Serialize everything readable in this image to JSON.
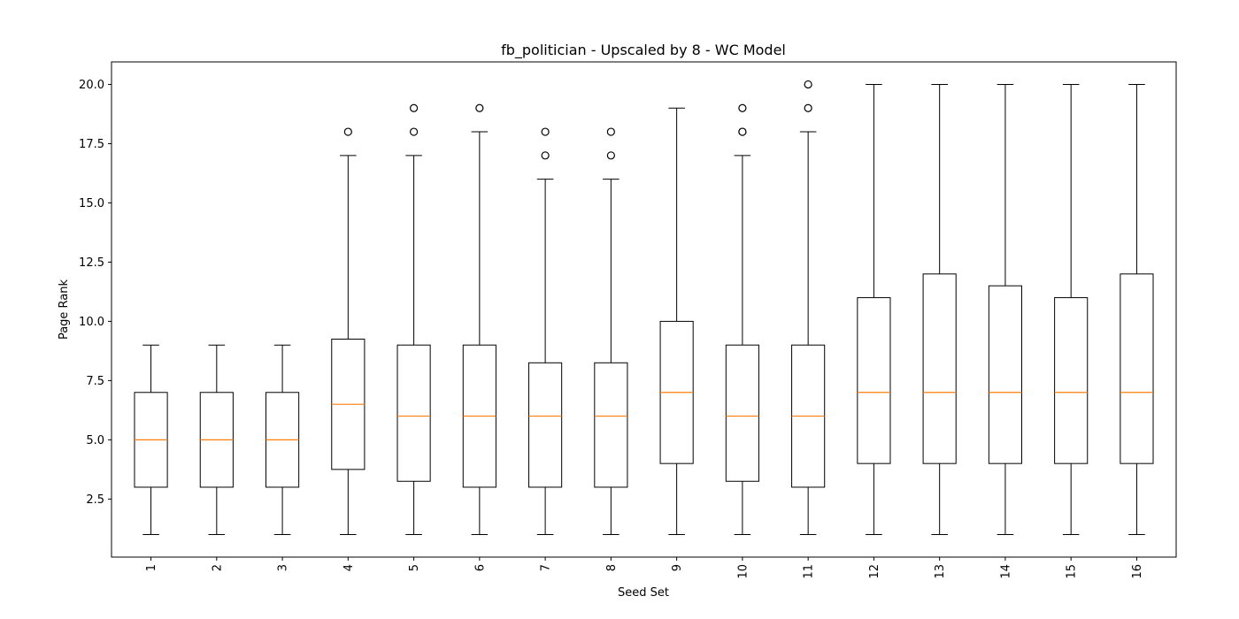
{
  "chart_data": {
    "type": "box",
    "title": "fb_politician - Upscaled by 8 - WC Model",
    "xlabel": "Seed Set",
    "ylabel": "Page Rank",
    "ylim": [
      0.05,
      20.95
    ],
    "yticks": [
      2.5,
      5.0,
      7.5,
      10.0,
      12.5,
      15.0,
      17.5,
      20.0
    ],
    "ytick_labels": [
      "2.5",
      "5.0",
      "7.5",
      "10.0",
      "12.5",
      "15.0",
      "17.5",
      "20.0"
    ],
    "categories": [
      "1",
      "2",
      "3",
      "4",
      "5",
      "6",
      "7",
      "8",
      "9",
      "10",
      "11",
      "12",
      "13",
      "14",
      "15",
      "16"
    ],
    "boxes": [
      {
        "whisker_low": 1,
        "q1": 3,
        "median": 5,
        "q3": 7,
        "whisker_high": 9,
        "outliers": []
      },
      {
        "whisker_low": 1,
        "q1": 3,
        "median": 5,
        "q3": 7,
        "whisker_high": 9,
        "outliers": []
      },
      {
        "whisker_low": 1,
        "q1": 3,
        "median": 5,
        "q3": 7,
        "whisker_high": 9,
        "outliers": []
      },
      {
        "whisker_low": 1,
        "q1": 3.75,
        "median": 6.5,
        "q3": 9.25,
        "whisker_high": 17,
        "outliers": [
          18
        ]
      },
      {
        "whisker_low": 1,
        "q1": 3.25,
        "median": 6,
        "q3": 9,
        "whisker_high": 17,
        "outliers": [
          18,
          19
        ]
      },
      {
        "whisker_low": 1,
        "q1": 3,
        "median": 6,
        "q3": 9,
        "whisker_high": 18,
        "outliers": [
          19
        ]
      },
      {
        "whisker_low": 1,
        "q1": 3,
        "median": 6,
        "q3": 8.25,
        "whisker_high": 16,
        "outliers": [
          17,
          18
        ]
      },
      {
        "whisker_low": 1,
        "q1": 3,
        "median": 6,
        "q3": 8.25,
        "whisker_high": 16,
        "outliers": [
          17,
          18
        ]
      },
      {
        "whisker_low": 1,
        "q1": 4,
        "median": 7,
        "q3": 10,
        "whisker_high": 19,
        "outliers": []
      },
      {
        "whisker_low": 1,
        "q1": 3.25,
        "median": 6,
        "q3": 9,
        "whisker_high": 17,
        "outliers": [
          18,
          18,
          19
        ]
      },
      {
        "whisker_low": 1,
        "q1": 3,
        "median": 6,
        "q3": 9,
        "whisker_high": 18,
        "outliers": [
          19,
          20
        ]
      },
      {
        "whisker_low": 1,
        "q1": 4,
        "median": 7,
        "q3": 11,
        "whisker_high": 20,
        "outliers": []
      },
      {
        "whisker_low": 1,
        "q1": 4,
        "median": 7,
        "q3": 12,
        "whisker_high": 20,
        "outliers": []
      },
      {
        "whisker_low": 1,
        "q1": 4,
        "median": 7,
        "q3": 11.5,
        "whisker_high": 20,
        "outliers": []
      },
      {
        "whisker_low": 1,
        "q1": 4,
        "median": 7,
        "q3": 11,
        "whisker_high": 20,
        "outliers": []
      },
      {
        "whisker_low": 1,
        "q1": 4,
        "median": 7,
        "q3": 12,
        "whisker_high": 20,
        "outliers": []
      }
    ],
    "grid": false,
    "legend": "none",
    "colors": {
      "box": "#000000",
      "median": "#ff7f0e",
      "outlier_face": "#ffffff",
      "outlier_edge": "#000000"
    }
  }
}
